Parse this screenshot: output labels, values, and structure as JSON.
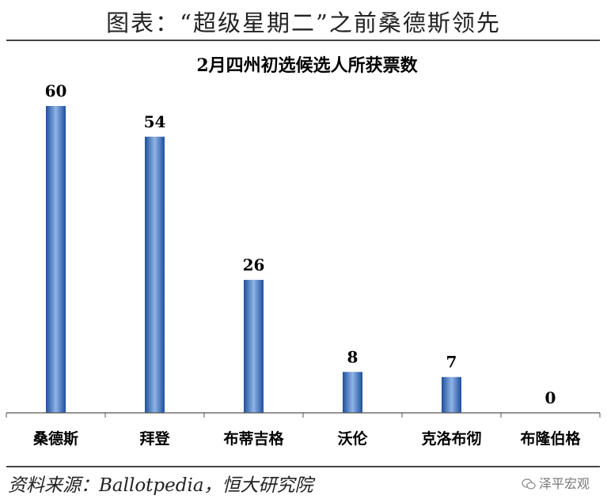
{
  "header": {
    "figure_title": "图表：“超级星期二”之前桑德斯领先"
  },
  "chart_data": {
    "type": "bar",
    "title": "2月四州初选候选人所获票数",
    "categories": [
      "桑德斯",
      "拜登",
      "布蒂吉格",
      "沃伦",
      "克洛布彻",
      "布隆伯格"
    ],
    "values": [
      60,
      54,
      26,
      8,
      7,
      0
    ],
    "ylim": [
      0,
      60
    ],
    "grid": false,
    "legend": "none",
    "colors": {
      "bar_edge": "#1f4f9e",
      "bar_mid": "#8fb4e6"
    }
  },
  "footer": {
    "source": "资料来源：Ballotpedia，恒大研究院",
    "watermark": "泽平宏观",
    "watermark_icon": "wechat-icon"
  }
}
